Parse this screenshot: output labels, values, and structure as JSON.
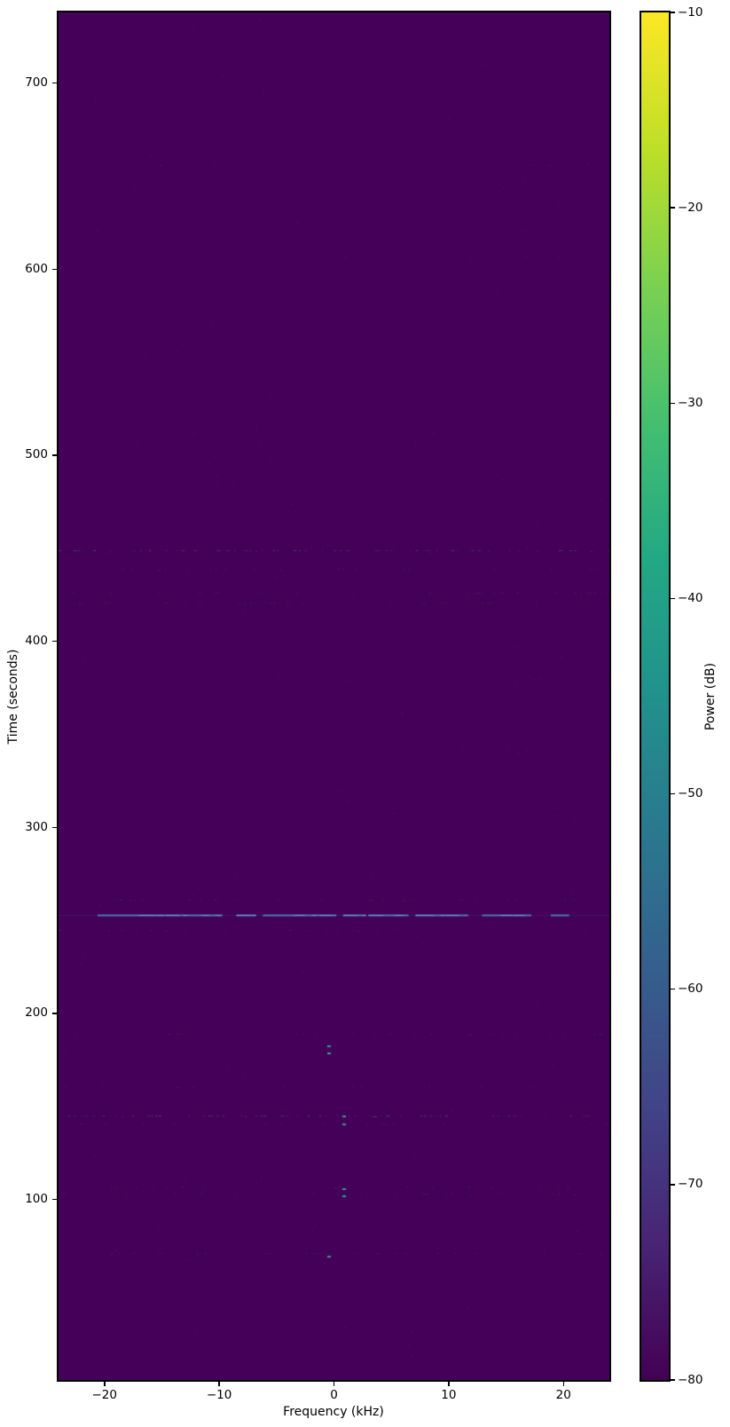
{
  "chart_data": {
    "type": "heatmap",
    "xlabel": "Frequency (kHz)",
    "ylabel": "Time (seconds)",
    "colorbar_label": "Power (dB)",
    "xlim": [
      -24,
      24
    ],
    "ylim": [
      3,
      738
    ],
    "clim": [
      -80,
      -10
    ],
    "colormap": "viridis",
    "background_power_db": -80,
    "background_color": "#450159",
    "x_ticks": [
      {
        "value": -20,
        "label": "−20"
      },
      {
        "value": -10,
        "label": "−10"
      },
      {
        "value": 0,
        "label": "0"
      },
      {
        "value": 10,
        "label": "10"
      },
      {
        "value": 20,
        "label": "20"
      }
    ],
    "y_ticks": [
      {
        "value": 100,
        "label": "100"
      },
      {
        "value": 200,
        "label": "200"
      },
      {
        "value": 300,
        "label": "300"
      },
      {
        "value": 400,
        "label": "400"
      },
      {
        "value": 500,
        "label": "500"
      },
      {
        "value": 600,
        "label": "600"
      },
      {
        "value": 700,
        "label": "700"
      }
    ],
    "colorbar_ticks": [
      {
        "value": -10,
        "label": "−10"
      },
      {
        "value": -20,
        "label": "−20"
      },
      {
        "value": -30,
        "label": "−30"
      },
      {
        "value": -40,
        "label": "−40"
      },
      {
        "value": -50,
        "label": "−50"
      },
      {
        "value": -60,
        "label": "−60"
      },
      {
        "value": -70,
        "label": "−70"
      },
      {
        "value": -80,
        "label": "−80"
      }
    ],
    "viridis_stops": [
      "#440154",
      "#482475",
      "#414487",
      "#355f8d",
      "#2a788e",
      "#21918c",
      "#22a884",
      "#44bf70",
      "#7ad151",
      "#bddf26",
      "#fde725"
    ],
    "features": {
      "main_line": {
        "time": 253,
        "power_db": -55,
        "color": "#4a7ab5",
        "bright_color": "#6899d2",
        "segments_khz": [
          [
            -20.6,
            -9.7
          ],
          [
            -8.5,
            -6.8
          ],
          [
            -6.2,
            0.2
          ],
          [
            0.8,
            2.8
          ],
          [
            3.0,
            6.5
          ],
          [
            7.1,
            11.7
          ],
          [
            12.9,
            17.2
          ],
          [
            18.9,
            20.5
          ]
        ]
      },
      "event_lines": [
        {
          "time": 449,
          "intensity": "medium",
          "power_db": -62
        },
        {
          "time": 439,
          "intensity": "faint",
          "power_db": -70
        },
        {
          "time": 426,
          "intensity": "faint",
          "power_db": -70
        },
        {
          "time": 421,
          "intensity": "faint",
          "power_db": -72
        },
        {
          "time": 261,
          "intensity": "faint",
          "power_db": -72
        },
        {
          "time": 245,
          "intensity": "faint",
          "power_db": -72
        },
        {
          "time": 189,
          "intensity": "faint",
          "power_db": -70
        },
        {
          "time": 161,
          "intensity": "faint",
          "power_db": -68
        },
        {
          "time": 145,
          "intensity": "medium",
          "power_db": -62
        },
        {
          "time": 141,
          "intensity": "faint",
          "power_db": -72
        },
        {
          "time": 107,
          "intensity": "faint",
          "power_db": -72
        },
        {
          "time": 103,
          "intensity": "faint",
          "power_db": -73
        },
        {
          "time": 71,
          "intensity": "faint",
          "power_db": -73
        },
        {
          "time": 656,
          "intensity": "sparse",
          "power_db": -76
        },
        {
          "time": 607,
          "intensity": "sparse",
          "power_db": -76
        },
        {
          "time": 380,
          "intensity": "sparse",
          "power_db": -76
        },
        {
          "time": 332,
          "intensity": "sparse",
          "power_db": -76
        }
      ],
      "specks": [
        {
          "freq_khz": -0.5,
          "time": 183,
          "power_db": -42
        },
        {
          "freq_khz": -0.5,
          "time": 179,
          "power_db": -42
        },
        {
          "freq_khz": 0.85,
          "time": 145,
          "power_db": -40
        },
        {
          "freq_khz": 0.85,
          "time": 141,
          "power_db": -42
        },
        {
          "freq_khz": 0.85,
          "time": 106,
          "power_db": -42
        },
        {
          "freq_khz": 0.85,
          "time": 102,
          "power_db": -43
        },
        {
          "freq_khz": -0.5,
          "time": 70,
          "power_db": -43
        }
      ],
      "speck_color": "#2fa08c"
    }
  }
}
